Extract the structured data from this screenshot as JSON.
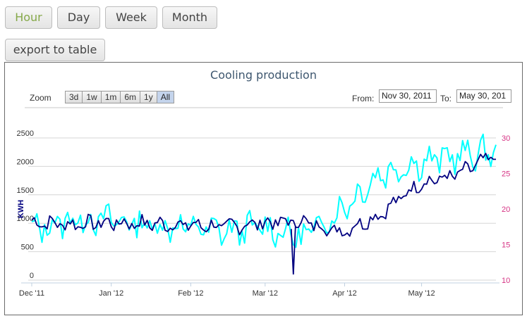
{
  "period_buttons": [
    "Hour",
    "Day",
    "Week",
    "Month"
  ],
  "export_label": "export to table",
  "chart": {
    "title": "Cooling production",
    "zoom_label": "Zoom",
    "zoom_buttons": [
      "3d",
      "1w",
      "1m",
      "6m",
      "1y",
      "All"
    ],
    "from_label": "From:",
    "from_value": "Nov 30, 2011",
    "to_label": "To:",
    "to_value": "May 30, 201"
  },
  "colors": {
    "series_kwh": "#000080",
    "series_temp": "#00ffff",
    "right_axis": "#d63384",
    "active_button_text": "#86a94a"
  },
  "chart_data": {
    "type": "line",
    "ylabel": "KWH",
    "y_ticks": [
      "0",
      "500",
      "1000",
      "1500",
      "2000",
      "2500"
    ],
    "ylim": [
      0,
      2500
    ],
    "y2_ticks": [
      "10",
      "15",
      "20",
      "25",
      "30"
    ],
    "y2lim": [
      10,
      30
    ],
    "x_ticks": [
      "Dec '11",
      "Jan '12",
      "Feb '12",
      "Mar '12",
      "Apr '12",
      "May '12"
    ],
    "x": [
      "Dec 1",
      "Dec 15",
      "Jan 1",
      "Jan 15",
      "Feb 1",
      "Feb 15",
      "Mar 1",
      "Mar 15",
      "Apr 1",
      "Apr 15",
      "May 1",
      "May 15",
      "May 30"
    ],
    "series": [
      {
        "axis": "left",
        "values": [
          1020,
          980,
          1010,
          990,
          970,
          940,
          1010,
          1030,
          850,
          1150,
          1700,
          1850,
          2200
        ]
      },
      {
        "axis": "right",
        "values": [
          17.0,
          18.5,
          18.5,
          17.8,
          17.5,
          16.8,
          17.5,
          16.0,
          20.0,
          25.0,
          26.5,
          27.5,
          28.0
        ]
      }
    ]
  }
}
